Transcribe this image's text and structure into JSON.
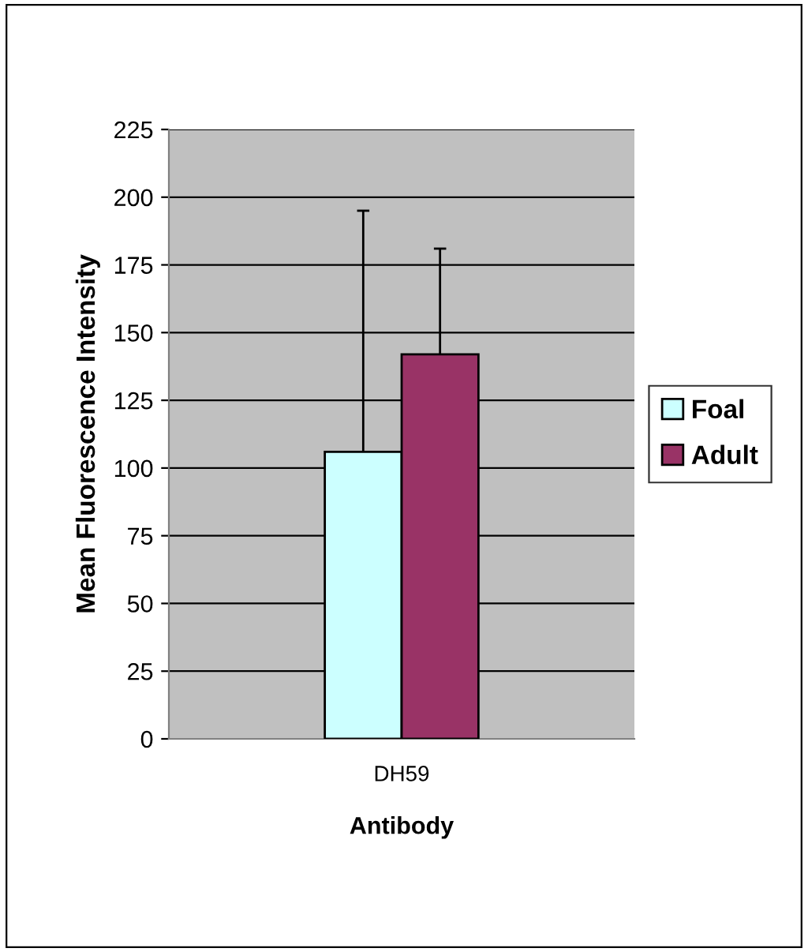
{
  "chart_data": {
    "type": "bar",
    "xlabel": "Antibody",
    "ylabel": "Mean Fluorescence Intensity",
    "categories": [
      "DH59"
    ],
    "series": [
      {
        "name": "Foal",
        "color": "#ccffff",
        "values": [
          106
        ],
        "errors": [
          [
            106,
            195
          ]
        ]
      },
      {
        "name": "Adult",
        "color": "#993366",
        "values": [
          142
        ],
        "errors": [
          [
            142,
            181
          ]
        ]
      }
    ],
    "ylim": [
      0,
      225
    ],
    "yticks": [
      0,
      25,
      50,
      75,
      100,
      125,
      150,
      175,
      200,
      225
    ],
    "grid": "y",
    "legend": "right"
  }
}
